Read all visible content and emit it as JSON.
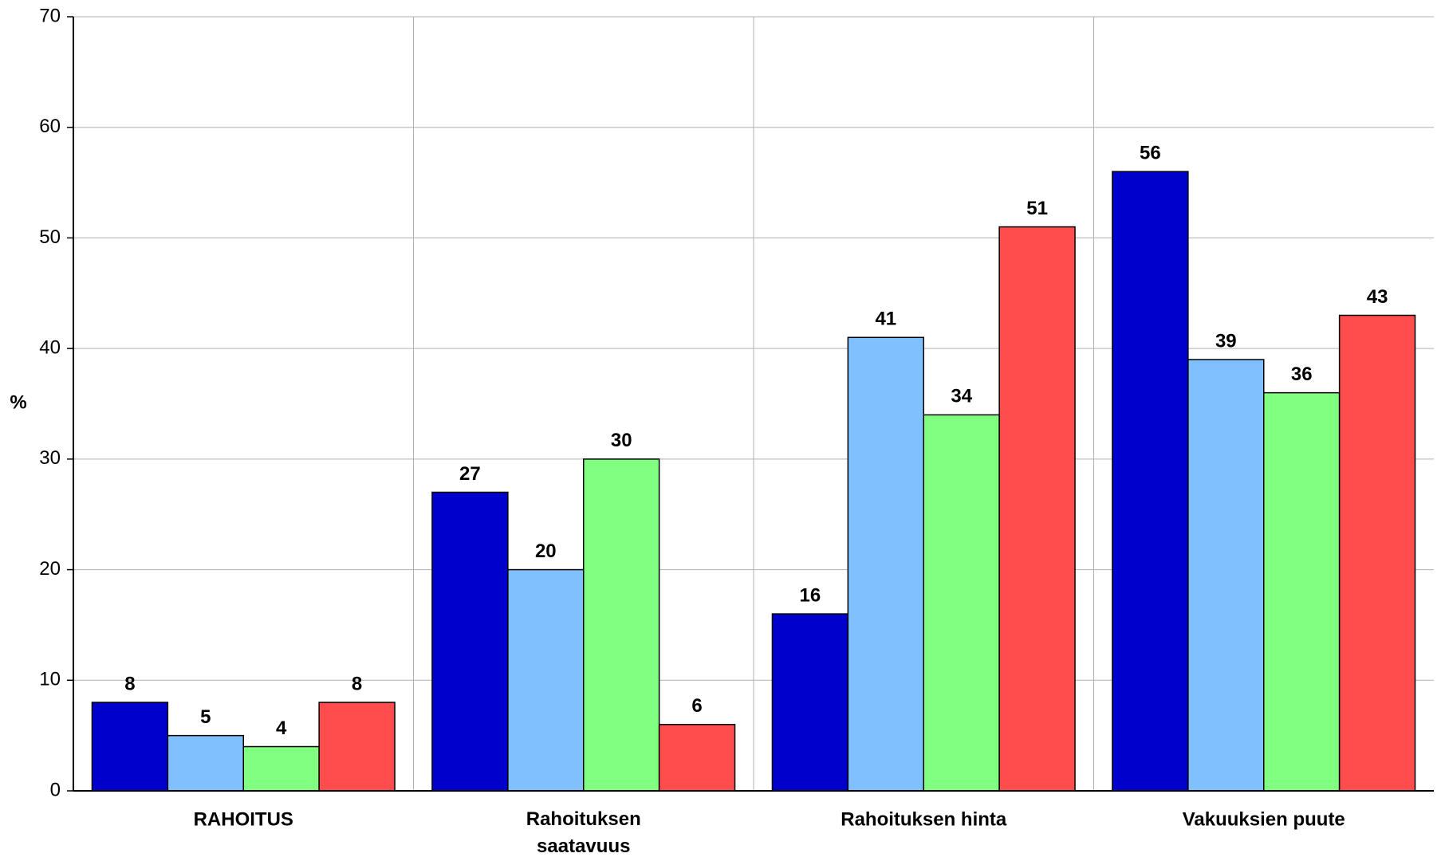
{
  "chart_data": {
    "type": "bar",
    "y_label": "%",
    "categories": [
      "RAHOITUS",
      "Rahoituksen saatavuus",
      "Rahoituksen hinta",
      "Vakuuksien puute"
    ],
    "series": [
      {
        "color": "#0000cc",
        "values": [
          8,
          27,
          16,
          56
        ]
      },
      {
        "color": "#80c0ff",
        "values": [
          5,
          20,
          41,
          39
        ]
      },
      {
        "color": "#80ff80",
        "values": [
          4,
          30,
          34,
          36
        ]
      },
      {
        "color": "#ff4d4d",
        "values": [
          8,
          6,
          51,
          43
        ]
      }
    ],
    "ylim": [
      0,
      70
    ],
    "yticks": [
      0,
      10,
      20,
      30,
      40,
      50,
      60,
      70
    ],
    "grid": true
  }
}
